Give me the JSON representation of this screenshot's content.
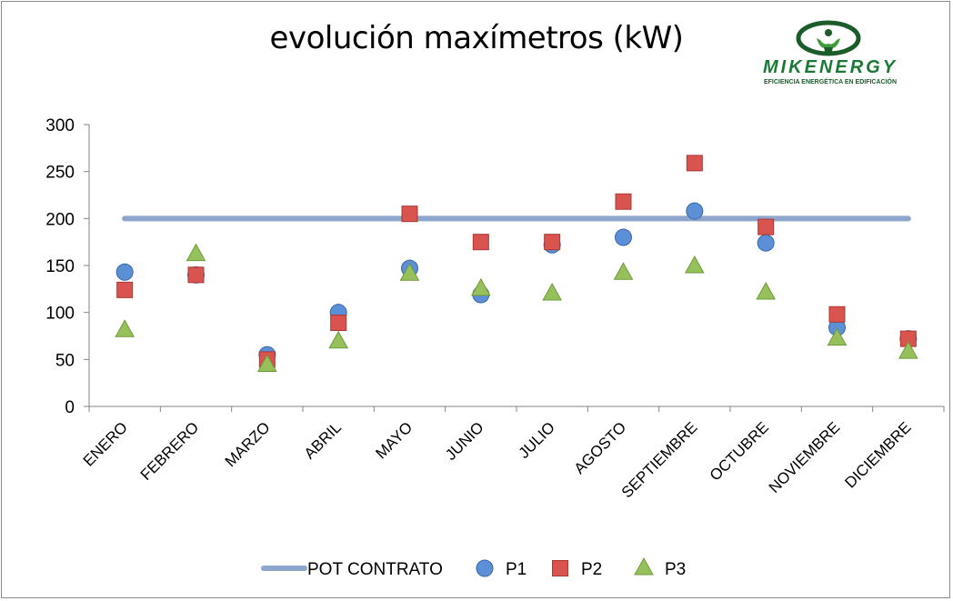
{
  "logo": {
    "brand": "MIKENERGY",
    "tagline": "EFICIENCIA ENERGÉTICA EN EDIFICACIÓN"
  },
  "chart_data": {
    "type": "scatter",
    "title": "evolución maxímetros (kW)",
    "categories": [
      "ENERO",
      "FEBRERO",
      "MARZO",
      "ABRIL",
      "MAYO",
      "JUNIO",
      "JULIO",
      "AGOSTO",
      "SEPTIEMBRE",
      "OCTUBRE",
      "NOVIEMBRE",
      "DICIEMBRE"
    ],
    "ylim": [
      0,
      300
    ],
    "yticks": [
      0,
      50,
      100,
      150,
      200,
      250,
      300
    ],
    "grid": false,
    "legend": "bottom",
    "series": [
      {
        "name": "POT CONTRATO",
        "style": "line",
        "color": "#8ea5ce",
        "values": [
          200,
          200,
          200,
          200,
          200,
          200,
          200,
          200,
          200,
          200,
          200,
          200
        ]
      },
      {
        "name": "P1",
        "style": "circle",
        "color": "#5b8fd6",
        "values": [
          143,
          140,
          55,
          100,
          147,
          119,
          172,
          180,
          208,
          174,
          84,
          72
        ]
      },
      {
        "name": "P2",
        "style": "square",
        "color": "#d9534f",
        "values": [
          124,
          140,
          50,
          89,
          205,
          175,
          175,
          218,
          259,
          191,
          98,
          72
        ]
      },
      {
        "name": "P3",
        "style": "triangle",
        "color": "#96c15a",
        "values": [
          81,
          162,
          44,
          69,
          141,
          125,
          120,
          142,
          149,
          121,
          72,
          58
        ]
      }
    ]
  }
}
